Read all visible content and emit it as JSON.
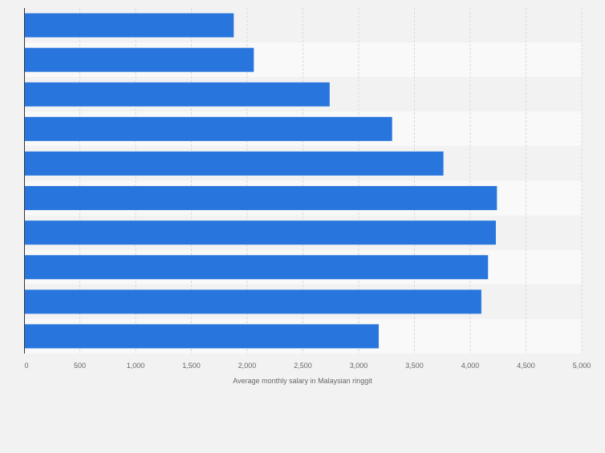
{
  "chart_data": {
    "type": "bar",
    "orientation": "horizontal",
    "categories": [
      "",
      "",
      "",
      "",
      "",
      "",
      "",
      "",
      "",
      ""
    ],
    "values": [
      1880,
      2060,
      2740,
      3300,
      3760,
      4240,
      4230,
      4160,
      4100,
      3180
    ],
    "xlabel": "Average monthly salary in Malaysian ringgit",
    "ylabel": "",
    "xlim": [
      0,
      5000
    ],
    "ticks": [
      0,
      500,
      1000,
      1500,
      2000,
      2500,
      3000,
      3500,
      4000,
      4500,
      5000
    ],
    "tick_labels": [
      "0",
      "500",
      "1,000",
      "1,500",
      "2,000",
      "2,500",
      "3,000",
      "3,500",
      "4,000",
      "4,500",
      "5,000"
    ],
    "grid": true,
    "colors": {
      "bar": "#2876dd",
      "band_light": "#f9f9f9",
      "band_dark": "#f2f2f2",
      "grid": "#d9d9d9",
      "axis": "#333333",
      "text": "#666666"
    }
  }
}
